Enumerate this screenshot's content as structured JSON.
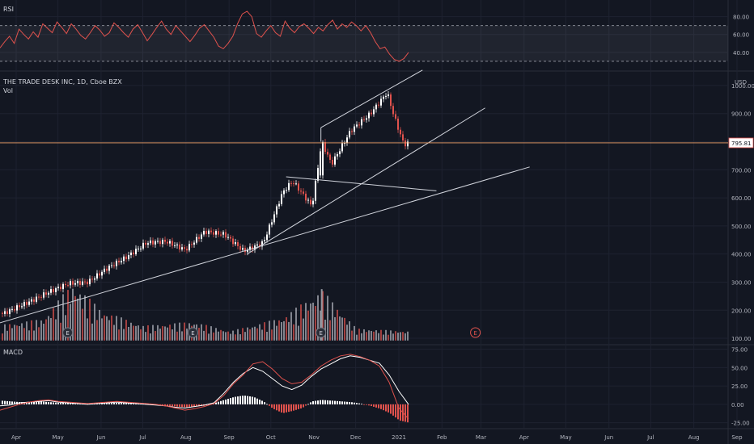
{
  "chart_data": [
    {
      "type": "line",
      "title": "RSI",
      "ylim": [
        20,
        95
      ],
      "y_ticks": [
        "80.00",
        "60.00",
        "40.00"
      ],
      "y_tick_values": [
        80,
        60,
        40
      ],
      "bands": {
        "upper": 70,
        "lower": 30
      },
      "series": [
        {
          "values": [
            45,
            52,
            58,
            50,
            66,
            60,
            55,
            63,
            57,
            72,
            67,
            62,
            74,
            68,
            61,
            72,
            66,
            59,
            55,
            62,
            70,
            65,
            58,
            62,
            73,
            68,
            62,
            57,
            66,
            71,
            62,
            53,
            60,
            68,
            75,
            66,
            60,
            70,
            64,
            58,
            52,
            59,
            67,
            71,
            64,
            57,
            47,
            44,
            50,
            58,
            72,
            83,
            86,
            80,
            61,
            57,
            64,
            70,
            62,
            58,
            75,
            67,
            62,
            69,
            72,
            67,
            61,
            68,
            64,
            71,
            76,
            66,
            72,
            68,
            74,
            70,
            64,
            70,
            62,
            52,
            44,
            46,
            38,
            32,
            30,
            33,
            40
          ]
        }
      ],
      "colors": {
        "line": "#e0524d",
        "band": "#ffffff"
      }
    },
    {
      "type": "candlestick",
      "title": "THE TRADE DESK INC, 1D, Cboe BZX",
      "subtitle": "Vol",
      "currency": "USD",
      "last_price": "795.81",
      "ylim": [
        80,
        1040
      ],
      "y_ticks": [
        "1000.00",
        "900.00",
        "800.00",
        "700.00",
        "600.00",
        "500.00",
        "400.00",
        "300.00",
        "200.00",
        "100.00"
      ],
      "y_tick_values": [
        1000,
        900,
        800,
        700,
        600,
        500,
        400,
        300,
        200,
        100
      ],
      "x_ticks": [
        "Apr",
        "May",
        "Jun",
        "Jul",
        "Aug",
        "Sep",
        "Oct",
        "Nov",
        "Dec",
        "2021",
        "Feb",
        "Mar",
        "Apr",
        "May",
        "Jun",
        "Jul",
        "Aug",
        "Sep"
      ],
      "x_tick_dates": [
        "2020-04-01",
        "2020-05-01",
        "2020-06-01",
        "2020-07-01",
        "2020-08-01",
        "2020-09-01",
        "2020-10-01",
        "2020-11-01",
        "2020-12-01",
        "2021-01-01",
        "2021-02-01",
        "2021-03-01",
        "2021-04-01",
        "2021-05-01",
        "2021-06-01",
        "2021-07-01",
        "2021-08-01",
        "2021-09-01"
      ],
      "close_series": [
        {
          "date": "2020-03-23",
          "close": 190
        },
        {
          "date": "2020-04-10",
          "close": 230
        },
        {
          "date": "2020-04-24",
          "close": 265
        },
        {
          "date": "2020-05-08",
          "close": 295
        },
        {
          "date": "2020-05-22",
          "close": 300
        },
        {
          "date": "2020-06-05",
          "close": 350
        },
        {
          "date": "2020-06-19",
          "close": 390
        },
        {
          "date": "2020-07-03",
          "close": 440
        },
        {
          "date": "2020-07-17",
          "close": 445
        },
        {
          "date": "2020-07-31",
          "close": 415
        },
        {
          "date": "2020-08-14",
          "close": 480
        },
        {
          "date": "2020-08-28",
          "close": 470
        },
        {
          "date": "2020-09-11",
          "close": 410
        },
        {
          "date": "2020-09-25",
          "close": 440
        },
        {
          "date": "2020-10-09",
          "close": 620
        },
        {
          "date": "2020-10-16",
          "close": 660
        },
        {
          "date": "2020-10-30",
          "close": 570
        },
        {
          "date": "2020-11-06",
          "close": 800
        },
        {
          "date": "2020-11-13",
          "close": 720
        },
        {
          "date": "2020-11-27",
          "close": 840
        },
        {
          "date": "2020-12-11",
          "close": 900
        },
        {
          "date": "2020-12-23",
          "close": 975
        },
        {
          "date": "2020-12-28",
          "close": 890
        },
        {
          "date": "2021-01-04",
          "close": 790
        },
        {
          "date": "2021-01-08",
          "close": 795.81
        }
      ],
      "volume": [
        {
          "date": "2020-03-23",
          "value": 150
        },
        {
          "date": "2020-04-20",
          "value": 170
        },
        {
          "date": "2020-05-11",
          "value": 300
        },
        {
          "date": "2020-06-01",
          "value": 200
        },
        {
          "date": "2020-07-01",
          "value": 145
        },
        {
          "date": "2020-08-06",
          "value": 160
        },
        {
          "date": "2020-09-01",
          "value": 125
        },
        {
          "date": "2020-10-09",
          "value": 175
        },
        {
          "date": "2020-11-06",
          "value": 275
        },
        {
          "date": "2020-12-01",
          "value": 135
        },
        {
          "date": "2021-01-08",
          "value": 125
        }
      ],
      "earnings_markers": [
        "E",
        "E",
        "E",
        "E"
      ],
      "earnings_dates": [
        "2020-05-08",
        "2020-08-06",
        "2020-11-06",
        "2021-02-25"
      ],
      "trendlines": "drawn",
      "colors": {
        "up": "#ffffff",
        "down": "#e0524d",
        "price_line": "#f0a36b",
        "grid": "#1e2230"
      }
    },
    {
      "type": "line",
      "title": "MACD",
      "ylim": [
        -32,
        80
      ],
      "y_ticks": [
        "75.00",
        "50.00",
        "25.00",
        "0.00",
        "-25.00"
      ],
      "y_tick_values": [
        75,
        50,
        25,
        0,
        -25
      ],
      "series": [
        {
          "name": "",
          "values": [
            -2,
            -1,
            2,
            3,
            4,
            5,
            3,
            2,
            1,
            0,
            1,
            2,
            3,
            2,
            1,
            0,
            -1,
            -2,
            -4,
            -5,
            -3,
            -1,
            2,
            15,
            30,
            42,
            50,
            45,
            35,
            25,
            20,
            26,
            38,
            48,
            55,
            62,
            66,
            64,
            60,
            56,
            40,
            18,
            0
          ]
        },
        {
          "name": "",
          "values": [
            -8,
            -4,
            0,
            3,
            5,
            6,
            4,
            3,
            2,
            1,
            2,
            3,
            4,
            3,
            2,
            1,
            0,
            -2,
            -5,
            -8,
            -6,
            -3,
            1,
            12,
            28,
            40,
            55,
            58,
            48,
            35,
            28,
            30,
            40,
            52,
            60,
            66,
            68,
            65,
            60,
            52,
            30,
            -5,
            -20
          ]
        }
      ],
      "histogram": [
        5,
        4,
        3,
        3,
        4,
        3,
        2,
        2,
        1,
        1,
        1,
        2,
        2,
        2,
        1,
        1,
        -1,
        -2,
        -3,
        -4,
        -3,
        -2,
        2,
        6,
        10,
        12,
        10,
        4,
        -6,
        -12,
        -9,
        -5,
        4,
        6,
        5,
        4,
        3,
        1,
        -2,
        -6,
        -12,
        -22,
        -25
      ],
      "colors": {
        "macd": "#ffffff",
        "signal": "#e0524d",
        "hist_pos": "#ffffff",
        "hist_neg": "#e0524d"
      }
    }
  ]
}
